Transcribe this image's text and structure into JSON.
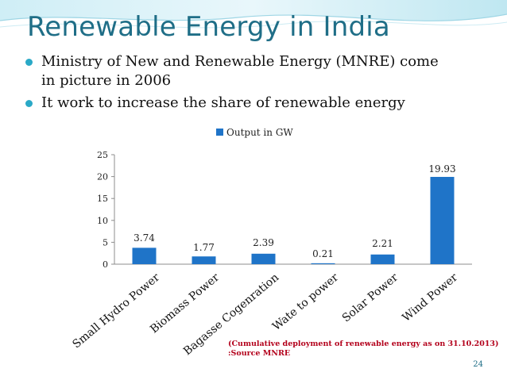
{
  "slide": {
    "title": "Renewable Energy in India",
    "bullets": [
      {
        "line1": " Ministry of New and Renewable Energy (MNRE) come",
        "line2": "in picture in 2006"
      },
      {
        "line1": "It work to increase the share of renewable energy",
        "line2": ""
      }
    ],
    "footnote": {
      "line1": "(Cumulative deployment of renewable energy as on 31.10.2013)",
      "line2": ":Source MNRE"
    },
    "page_number": "24"
  },
  "colors": {
    "title": "#1f6e87",
    "bar": "#1f74c8",
    "bullet": "#2aa9c7",
    "footnote": "#b3001b"
  },
  "chart_data": {
    "type": "bar",
    "categories": [
      "Small Hydro Power",
      "Biomass Power",
      "Bagasse Cogenration",
      "Wate to power",
      "Solar Power",
      "Wind Power"
    ],
    "series": [
      {
        "name": "Output in GW",
        "values": [
          3.74,
          1.77,
          2.39,
          0.21,
          2.21,
          19.93
        ]
      }
    ],
    "data_labels": [
      "3.74",
      "1.77",
      "2.39",
      "0.21",
      "2.21",
      "19.93"
    ],
    "yticks": [
      "0",
      "5",
      "10",
      "15",
      "20",
      "25"
    ],
    "ylim": [
      0,
      25
    ],
    "legend_position": "top",
    "grid": false
  }
}
